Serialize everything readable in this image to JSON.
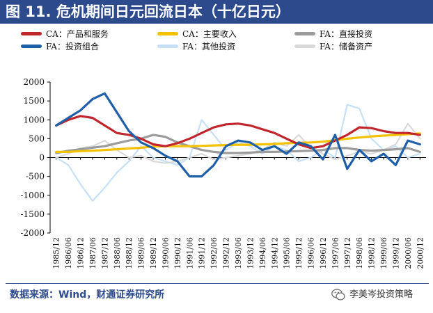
{
  "title": "图 11. 危机期间日元回流日本（十亿日元）",
  "footer": {
    "source": "数据来源：Wind，财通证券研究所",
    "brand": "李美岑投资策略",
    "brand_icon": "wechat-icon"
  },
  "chart_data": {
    "type": "line",
    "title": "图 11. 危机期间日元回流日本（十亿日元）",
    "xlabel": "",
    "ylabel": "",
    "ylim": [
      -2000,
      2000
    ],
    "yticks": [
      -2000,
      -1500,
      -1000,
      -500,
      0,
      500,
      1000,
      1500,
      2000
    ],
    "x_start": "1985/12",
    "x_step_months": 6,
    "categories": [
      "1985/12",
      "1986/06",
      "1986/12",
      "1987/06",
      "1987/12",
      "1988/06",
      "1988/12",
      "1989/06",
      "1989/12",
      "1990/06",
      "1990/12",
      "1991/06",
      "1991/12",
      "1992/06",
      "1992/12",
      "1993/06",
      "1993/12",
      "1994/06",
      "1994/12",
      "1995/06",
      "1995/12",
      "1996/06",
      "1996/12",
      "1997/06",
      "1997/12",
      "1998/06",
      "1998/12",
      "1999/06",
      "1999/12",
      "2000/06",
      "2000/12"
    ],
    "legend_position": "top",
    "grid": false,
    "series": [
      {
        "name": "CA：产品和服务",
        "color": "#c0272d",
        "width": 3.2,
        "values": [
          850,
          1000,
          1100,
          1050,
          850,
          650,
          600,
          500,
          350,
          300,
          380,
          500,
          650,
          800,
          880,
          900,
          850,
          750,
          650,
          500,
          350,
          250,
          300,
          450,
          600,
          800,
          780,
          700,
          650,
          650,
          600
        ]
      },
      {
        "name": "CA：主要收入",
        "color": "#f2c200",
        "width": 3.2,
        "values": [
          150,
          150,
          170,
          180,
          200,
          220,
          240,
          260,
          290,
          300,
          300,
          300,
          310,
          320,
          330,
          340,
          340,
          350,
          360,
          380,
          390,
          400,
          420,
          460,
          500,
          530,
          560,
          580,
          600,
          620,
          640
        ]
      },
      {
        "name": "FA：直接投资",
        "color": "#9b9b9b",
        "width": 3.2,
        "values": [
          120,
          180,
          220,
          260,
          300,
          380,
          450,
          500,
          600,
          550,
          400,
          300,
          200,
          150,
          120,
          120,
          130,
          150,
          150,
          160,
          170,
          180,
          200,
          250,
          250,
          200,
          180,
          200,
          220,
          250,
          150
        ]
      },
      {
        "name": "FA：投资组合",
        "color": "#1f5fa8",
        "width": 3.2,
        "values": [
          850,
          1050,
          1250,
          1550,
          1700,
          1200,
          700,
          400,
          250,
          50,
          -100,
          -500,
          -500,
          -200,
          300,
          450,
          400,
          200,
          300,
          100,
          400,
          300,
          -50,
          600,
          -300,
          200,
          -100,
          100,
          -200,
          450,
          350
        ]
      },
      {
        "name": "FA：其他投资",
        "color": "#c6e0f5",
        "width": 2.2,
        "values": [
          0,
          -200,
          -700,
          -1150,
          -800,
          -400,
          -100,
          300,
          0,
          -100,
          -200,
          0,
          1000,
          600,
          200,
          400,
          300,
          100,
          300,
          200,
          -100,
          0,
          200,
          0,
          1400,
          1300,
          500,
          200,
          300,
          0,
          100
        ]
      },
      {
        "name": "FA：储备资产",
        "color": "#d9d9d9",
        "width": 2.2,
        "values": [
          0,
          100,
          250,
          300,
          450,
          200,
          0,
          50,
          -100,
          -150,
          -100,
          0,
          100,
          -50,
          0,
          50,
          100,
          200,
          400,
          300,
          600,
          250,
          100,
          -50,
          50,
          150,
          100,
          200,
          350,
          900,
          500
        ]
      }
    ]
  }
}
